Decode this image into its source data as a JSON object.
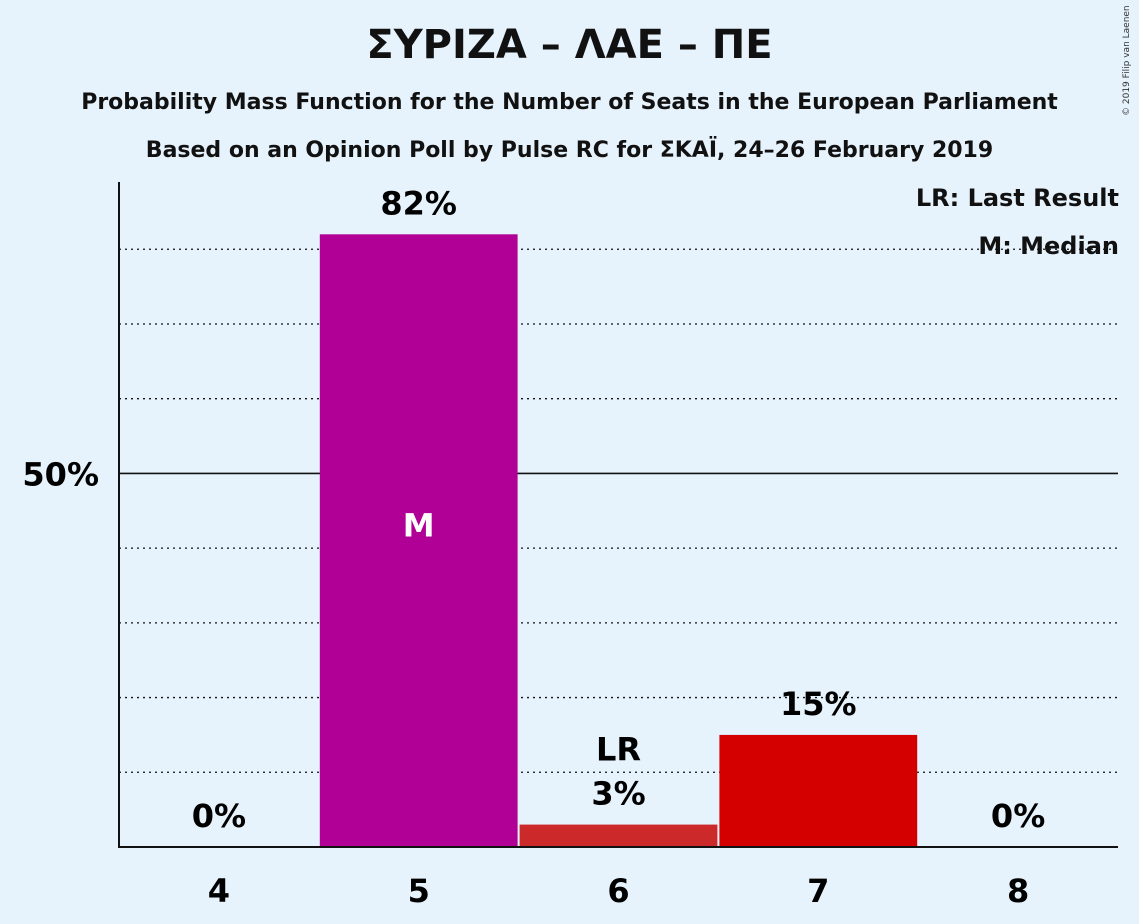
{
  "chart_data": {
    "type": "bar",
    "title": "ΣΥΡΙΖΑ – ΛΑΕ – ΠΕ",
    "subtitle": "Probability Mass Function for the Number of Seats in the European Parliament",
    "subtitle2": "Based on an Opinion Poll by Pulse RC for ΣΚΑΪ, 24–26 February 2019",
    "categories": [
      "4",
      "5",
      "6",
      "7",
      "8"
    ],
    "values": [
      0,
      82,
      3,
      15,
      0
    ],
    "value_labels": [
      "0%",
      "82%",
      "3%",
      "15%",
      "0%"
    ],
    "bar_colors": [
      "#e6f2fc",
      "#b00096",
      "#cc2a2a",
      "#d40000",
      "#e6f2fc"
    ],
    "ylim": [
      0,
      89
    ],
    "y_ticks": [
      {
        "value": 50,
        "label": "50%"
      }
    ],
    "grid_lines": [
      10,
      20,
      30,
      40,
      60,
      70,
      80
    ],
    "median_category": "5",
    "median_marker": "M",
    "last_result_category": "6",
    "last_result_marker": "LR",
    "legend": {
      "last_result": "LR: Last Result",
      "median": "M: Median"
    },
    "credit": "© 2019 Filip van Laenen",
    "grid": true,
    "legend_position": "top-right"
  }
}
